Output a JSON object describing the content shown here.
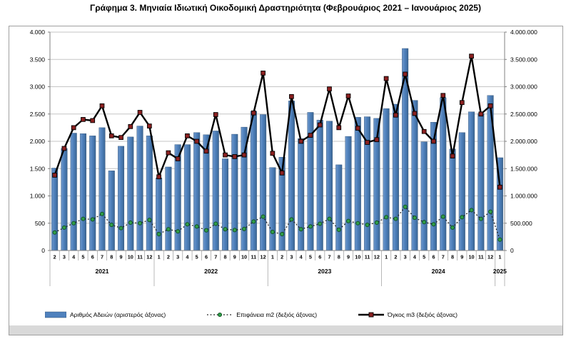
{
  "title": "Γράφημα 3. Μηνιαία Ιδιωτική Οικοδομική Δραστηριότητα (Φεβρουάριος 2021 – Ιανουάριος 2025)",
  "chart_data": {
    "type": "bar",
    "title": "Γράφημα 3. Μηνιαία Ιδιωτική Οικοδομική Δραστηριότητα (Φεβρουάριος 2021 – Ιανουάριος 2025)",
    "grid": true,
    "legend_position": "bottom",
    "left_axis": {
      "min": 0,
      "max": 4000,
      "step": 500,
      "tick_labels": [
        "0",
        "500",
        "1.000",
        "1.500",
        "2.000",
        "2.500",
        "3.000",
        "3.500",
        "4.000"
      ]
    },
    "right_axis": {
      "min": 0,
      "max": 4000000,
      "step": 500000,
      "tick_labels": [
        "0",
        "500.000",
        "1.000.000",
        "1.500.000",
        "2.000.000",
        "2.500.000",
        "3.000.000",
        "3.500.000",
        "4.000.000"
      ]
    },
    "x_axis": {
      "years": [
        {
          "label": "2021",
          "months": [
            "2",
            "3",
            "4",
            "5",
            "6",
            "7",
            "8",
            "9",
            "10",
            "11",
            "12"
          ]
        },
        {
          "label": "2022",
          "months": [
            "1",
            "2",
            "3",
            "4",
            "5",
            "6",
            "7",
            "8",
            "9",
            "10",
            "11",
            "12"
          ]
        },
        {
          "label": "2023",
          "months": [
            "1",
            "2",
            "3",
            "4",
            "5",
            "6",
            "7",
            "8",
            "9",
            "10",
            "11",
            "12"
          ]
        },
        {
          "label": "2024",
          "months": [
            "1",
            "2",
            "3",
            "4",
            "5",
            "6",
            "7",
            "8",
            "9",
            "10",
            "11",
            "12"
          ]
        },
        {
          "label": "2025",
          "months": [
            "1"
          ]
        }
      ]
    },
    "series": [
      {
        "name": "Αριθμός Αδειών (αριστερός άξονας)",
        "type": "bar",
        "axis": "left",
        "color": "#4f81bd",
        "color_light": "#6e97c9",
        "color_dark": "#3b6694",
        "outline": "#2c4d71",
        "values": [
          1510,
          1870,
          2150,
          2140,
          2100,
          2250,
          1460,
          1910,
          2080,
          2280,
          2100,
          1330,
          1530,
          1940,
          1940,
          2160,
          2120,
          2190,
          1680,
          2130,
          2260,
          2550,
          2490,
          1520,
          1710,
          2740,
          2050,
          2530,
          2390,
          2370,
          1570,
          2090,
          2440,
          2450,
          2420,
          2600,
          2680,
          3700,
          2750,
          1990,
          2350,
          2800,
          1860,
          2160,
          2540,
          2510,
          2840,
          1700
        ]
      },
      {
        "name": "Επιφάνεια m2 (δεξιός άξονας)",
        "type": "dotted-line",
        "axis": "right",
        "color": "#1a1a1a",
        "marker": "circle",
        "marker_color": "#2f9e49",
        "marker_outline": "#124d22",
        "values": [
          330000,
          420000,
          500000,
          580000,
          570000,
          670000,
          470000,
          410000,
          510000,
          500000,
          560000,
          300000,
          390000,
          350000,
          480000,
          440000,
          370000,
          490000,
          390000,
          375000,
          395000,
          530000,
          620000,
          340000,
          300000,
          570000,
          390000,
          440000,
          490000,
          580000,
          380000,
          540000,
          500000,
          470000,
          510000,
          610000,
          580000,
          800000,
          600000,
          520000,
          480000,
          620000,
          420000,
          610000,
          740000,
          580000,
          710000,
          200000
        ]
      },
      {
        "name": "Όγκος m3 (δεξιός άξονας)",
        "type": "line",
        "axis": "right",
        "color": "#000000",
        "marker": "square",
        "marker_color": "#8b2020",
        "marker_outline": "#000000",
        "values": [
          1380000,
          1870000,
          2250000,
          2400000,
          2380000,
          2650000,
          2100000,
          2070000,
          2270000,
          2530000,
          2280000,
          1350000,
          1790000,
          1680000,
          2100000,
          2000000,
          1820000,
          2490000,
          1750000,
          1720000,
          1750000,
          2520000,
          3250000,
          1780000,
          1420000,
          2820000,
          2000000,
          2110000,
          2300000,
          2960000,
          2250000,
          2830000,
          2240000,
          1980000,
          2030000,
          3150000,
          2480000,
          3230000,
          2510000,
          2180000,
          2000000,
          2840000,
          1730000,
          2710000,
          3560000,
          2500000,
          2650000,
          1160000
        ]
      }
    ],
    "gridline_color": "#c6c6c6",
    "axis_line_color": "#808080"
  },
  "legend": {
    "items": [
      {
        "swatch": "bar",
        "label": "Αριθμός Αδειών (αριστερός άξονας)"
      },
      {
        "swatch": "dotted-line",
        "label": "Επιφάνεια m2 (δεξιός άξονας)"
      },
      {
        "swatch": "line",
        "label": "Όγκος m3 (δεξιός άξονας)"
      }
    ]
  }
}
